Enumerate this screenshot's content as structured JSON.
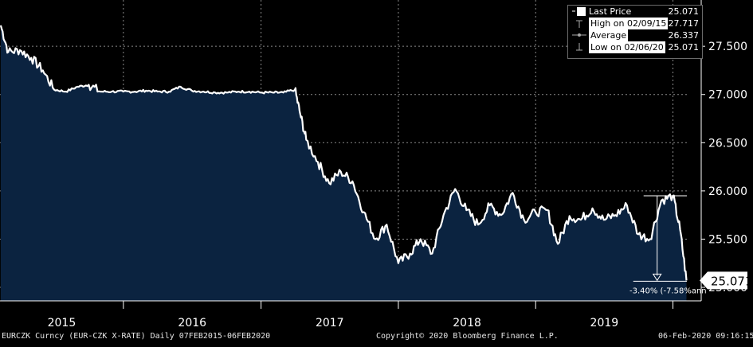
{
  "chart_data": {
    "type": "area",
    "title": "",
    "xlabel": "",
    "ylabel": "",
    "x_ticks": [
      "2015",
      "2016",
      "2017",
      "2018",
      "2019"
    ],
    "y_ticks": [
      "25.000",
      "25.500",
      "26.000",
      "26.500",
      "27.000",
      "27.500"
    ],
    "ylim": [
      24.86,
      27.98
    ],
    "grid": true,
    "last_value_label": "25.071",
    "annotation_label": "-3.40% (-7.58%ann",
    "series": [
      {
        "name": "Last Price",
        "x": [
          "2015-02-09",
          "2015-03-01",
          "2015-04-01",
          "2015-05-01",
          "2015-06-01",
          "2015-07-01",
          "2015-08-01",
          "2015-09-01",
          "2015-10-01",
          "2015-11-01",
          "2015-12-01",
          "2016-01-01",
          "2016-02-01",
          "2016-03-01",
          "2016-04-01",
          "2016-05-01",
          "2016-06-01",
          "2016-07-01",
          "2016-08-01",
          "2016-09-01",
          "2016-10-01",
          "2016-11-01",
          "2016-12-01",
          "2017-01-01",
          "2017-02-01",
          "2017-03-01",
          "2017-04-01",
          "2017-04-15",
          "2017-05-01",
          "2017-06-01",
          "2017-07-01",
          "2017-08-01",
          "2017-09-01",
          "2017-10-01",
          "2017-11-01",
          "2017-12-01",
          "2018-01-01",
          "2018-02-01",
          "2018-03-01",
          "2018-04-01",
          "2018-05-01",
          "2018-06-01",
          "2018-07-01",
          "2018-08-01",
          "2018-09-01",
          "2018-10-01",
          "2018-11-01",
          "2018-12-01",
          "2019-01-01",
          "2019-02-01",
          "2019-03-01",
          "2019-04-01",
          "2019-05-01",
          "2019-06-01",
          "2019-07-01",
          "2019-08-01",
          "2019-09-01",
          "2019-10-01",
          "2019-11-01",
          "2019-12-01",
          "2020-01-01",
          "2020-01-20",
          "2020-02-06"
        ],
        "values": [
          27.717,
          27.44,
          27.46,
          27.38,
          27.25,
          27.05,
          27.03,
          27.08,
          27.1,
          27.03,
          27.03,
          27.03,
          27.03,
          27.04,
          27.03,
          27.03,
          27.08,
          27.04,
          27.03,
          27.02,
          27.02,
          27.03,
          27.03,
          27.02,
          27.02,
          27.02,
          27.05,
          26.8,
          26.53,
          26.3,
          26.08,
          26.2,
          26.1,
          25.78,
          25.5,
          25.65,
          25.25,
          25.35,
          25.5,
          25.35,
          25.75,
          26.02,
          25.8,
          25.65,
          25.85,
          25.75,
          25.98,
          25.7,
          25.78,
          25.8,
          25.45,
          25.74,
          25.7,
          25.82,
          25.7,
          25.75,
          25.85,
          25.55,
          25.5,
          25.9,
          25.95,
          25.6,
          25.071
        ]
      }
    ]
  },
  "legend": {
    "last_price_label": "Last Price",
    "last_price_value": "25.071",
    "high_label": "High on 02/09/15",
    "high_value": "27.717",
    "average_label": "Average",
    "average_value": "26.337",
    "low_label": "Low on 02/06/20",
    "low_value": "25.071"
  },
  "footer": {
    "ticker": "EURCZK Curncy (EUR-CZK X-RATE)  Daily 07FEB2015-06FEB2020",
    "copyright": "Copyright© 2020 Bloomberg Finance L.P.",
    "timestamp": "06-Feb-2020 09:16:15"
  },
  "colors": {
    "fill": "#0b2340",
    "line": "#ffffff",
    "grid": "#8a8a8a",
    "background": "#000000"
  }
}
